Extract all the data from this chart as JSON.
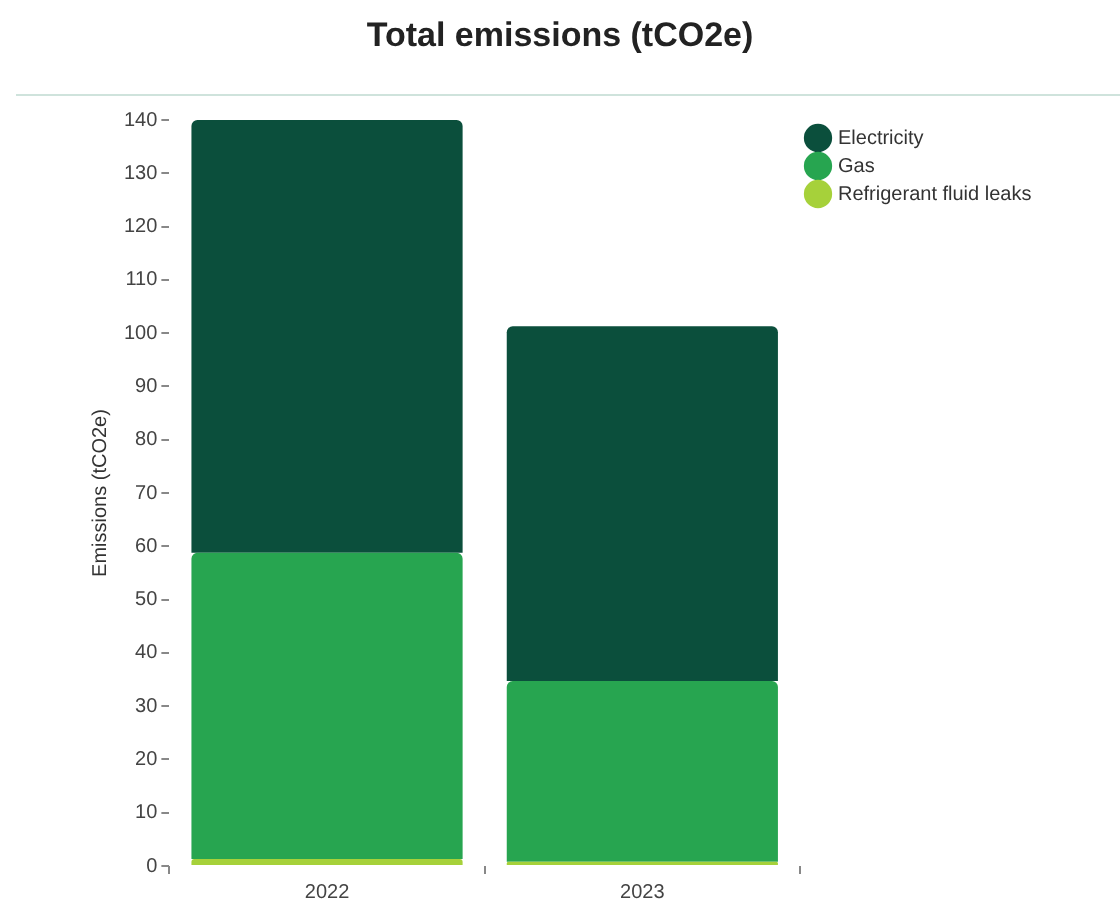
{
  "chart_data": {
    "type": "bar",
    "title": "Total emissions (tCO2e)",
    "ylabel": "Emissions (tCO2e)",
    "categories": [
      "2022",
      "2023"
    ],
    "stacked": true,
    "series": [
      {
        "name": "Refrigerant fluid leaks",
        "color": "#a6d13a",
        "values": [
          1.3,
          0.8
        ]
      },
      {
        "name": "Gas",
        "color": "#27a550",
        "values": [
          57.5,
          33.9
        ]
      },
      {
        "name": "Electricity",
        "color": "#0b4f3c",
        "values": [
          81.2,
          66.6
        ]
      }
    ],
    "ylim": [
      0,
      140
    ],
    "yticks": [
      0,
      10,
      20,
      30,
      40,
      50,
      60,
      70,
      80,
      90,
      100,
      110,
      120,
      130,
      140
    ],
    "grid": false,
    "legend": "top right"
  }
}
